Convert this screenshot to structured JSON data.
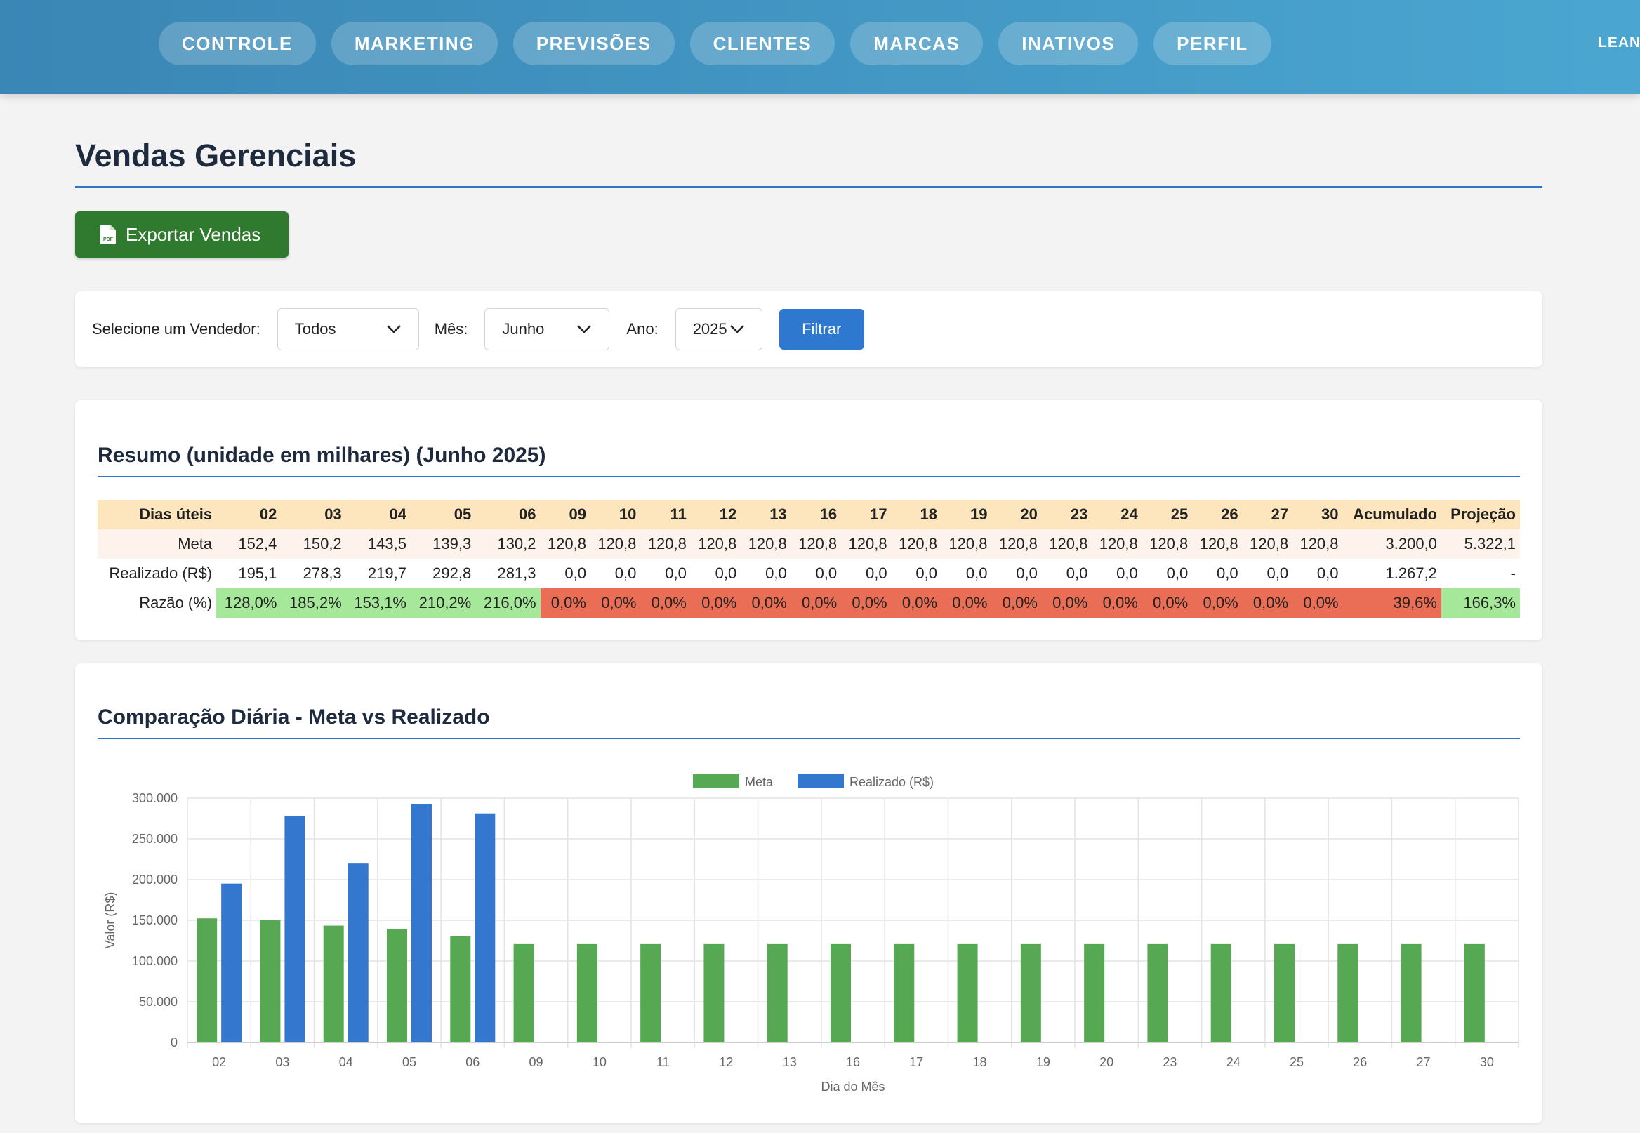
{
  "nav": {
    "items": [
      "CONTROLE",
      "MARKETING",
      "PREVISÕES",
      "CLIENTES",
      "MARCAS",
      "INATIVOS",
      "PERFIL"
    ],
    "user": "LEANI"
  },
  "page": {
    "title": "Vendas Gerenciais"
  },
  "export": {
    "label": "Exportar Vendas",
    "icon": "pdf-file-icon"
  },
  "filters": {
    "seller_label": "Selecione um Vendedor:",
    "seller_value": "Todos",
    "month_label": "Mês:",
    "month_value": "Junho",
    "year_label": "Ano:",
    "year_value": "2025",
    "button": "Filtrar"
  },
  "summary": {
    "title": "Resumo (unidade em milhares) (Junho 2025)",
    "header_label": "Dias úteis",
    "days": [
      "02",
      "03",
      "04",
      "05",
      "06",
      "09",
      "10",
      "11",
      "12",
      "13",
      "16",
      "17",
      "18",
      "19",
      "20",
      "23",
      "24",
      "25",
      "26",
      "27",
      "30"
    ],
    "acc_label": "Acumulado",
    "proj_label": "Projeção",
    "rows": [
      {
        "label": "Meta",
        "values": [
          "152,4",
          "150,2",
          "143,5",
          "139,3",
          "130,2",
          "120,8",
          "120,8",
          "120,8",
          "120,8",
          "120,8",
          "120,8",
          "120,8",
          "120,8",
          "120,8",
          "120,8",
          "120,8",
          "120,8",
          "120,8",
          "120,8",
          "120,8",
          "120,8"
        ],
        "acc": "3.200,0",
        "proj": "5.322,1"
      },
      {
        "label": "Realizado (R$)",
        "values": [
          "195,1",
          "278,3",
          "219,7",
          "292,8",
          "281,3",
          "0,0",
          "0,0",
          "0,0",
          "0,0",
          "0,0",
          "0,0",
          "0,0",
          "0,0",
          "0,0",
          "0,0",
          "0,0",
          "0,0",
          "0,0",
          "0,0",
          "0,0",
          "0,0"
        ],
        "acc": "1.267,2",
        "proj": "-"
      },
      {
        "label": "Razão (%)",
        "values": [
          "128,0%",
          "185,2%",
          "153,1%",
          "210,2%",
          "216,0%",
          "0,0%",
          "0,0%",
          "0,0%",
          "0,0%",
          "0,0%",
          "0,0%",
          "0,0%",
          "0,0%",
          "0,0%",
          "0,0%",
          "0,0%",
          "0,0%",
          "0,0%",
          "0,0%",
          "0,0%",
          "0,0%"
        ],
        "acc": "39,6%",
        "proj": "166,3%"
      }
    ],
    "colors": {
      "header": "#fde5bd",
      "meta_row": "#fdf3ec",
      "ok": "#a6e89a",
      "bad": "#ea6d55"
    }
  },
  "chart": {
    "title": "Comparação Diária - Meta vs Realizado"
  },
  "chart_data": {
    "type": "bar",
    "title": "",
    "categories": [
      "02",
      "03",
      "04",
      "05",
      "06",
      "09",
      "10",
      "11",
      "12",
      "13",
      "16",
      "17",
      "18",
      "19",
      "20",
      "23",
      "24",
      "25",
      "26",
      "27",
      "30"
    ],
    "series": [
      {
        "name": "Meta",
        "color": "#57a852",
        "values": [
          152400,
          150200,
          143500,
          139300,
          130200,
          120800,
          120800,
          120800,
          120800,
          120800,
          120800,
          120800,
          120800,
          120800,
          120800,
          120800,
          120800,
          120800,
          120800,
          120800,
          120800
        ]
      },
      {
        "name": "Realizado (R$)",
        "color": "#3477cf",
        "values": [
          195100,
          278300,
          219700,
          292800,
          281300,
          0,
          0,
          0,
          0,
          0,
          0,
          0,
          0,
          0,
          0,
          0,
          0,
          0,
          0,
          0,
          0
        ]
      }
    ],
    "xlabel": "Dia do Mês",
    "ylabel": "Valor (R$)",
    "ylim": [
      0,
      300000
    ],
    "yticks": [
      "0",
      "50.000",
      "100.000",
      "150.000",
      "200.000",
      "250.000",
      "300.000"
    ],
    "grid": true,
    "legend": "top-center"
  }
}
